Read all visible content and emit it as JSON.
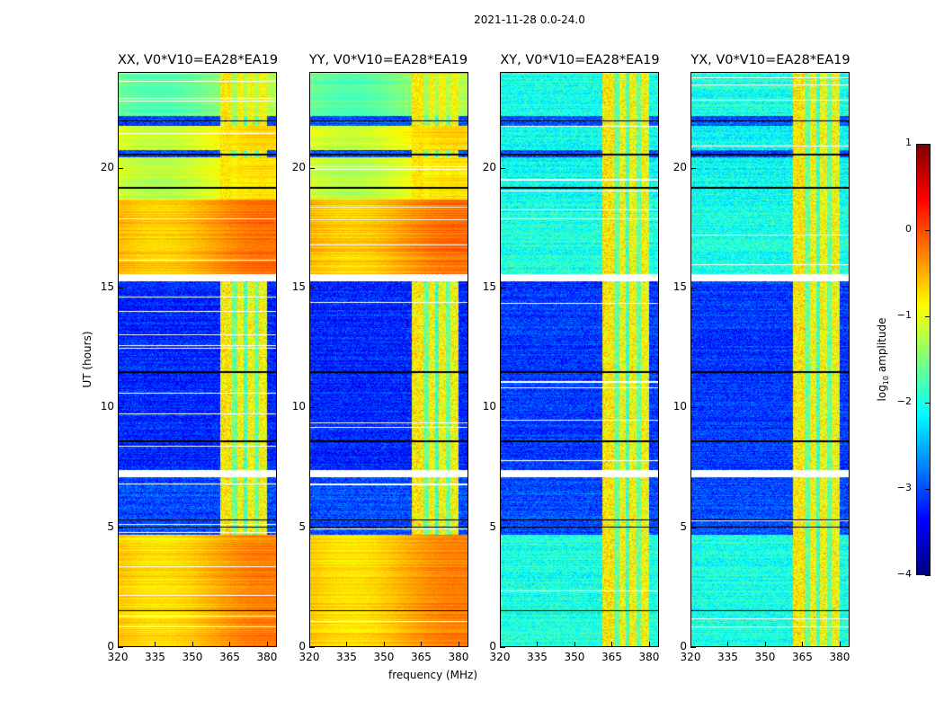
{
  "chart_data": {
    "type": "heatmap",
    "suptitle": "2021-11-28 0.0-24.0",
    "xlabel": "frequency (MHz)",
    "ylabel": "UT (hours)",
    "xlim": [
      320,
      384
    ],
    "ylim": [
      0,
      24
    ],
    "x_ticks": [
      "320",
      "335",
      "350",
      "365",
      "380"
    ],
    "x_tick_values": [
      320,
      335,
      350,
      365,
      380
    ],
    "y_ticks": [
      "0",
      "5",
      "10",
      "15",
      "20"
    ],
    "y_tick_values": [
      0,
      5,
      10,
      15,
      20
    ],
    "colormap": "jet",
    "colorbar": {
      "label_prefix": "log",
      "label_sub": "10",
      "label_suffix": " amplitude",
      "range": [
        -4,
        1
      ],
      "ticks": [
        "1",
        "0",
        "−1",
        "−2",
        "−3",
        "−4"
      ],
      "tick_values": [
        1,
        0,
        -1,
        -2,
        -3,
        -4
      ]
    },
    "panels": [
      {
        "title": "XX, V0*V10=EA28*EA19",
        "pol": "parallel"
      },
      {
        "title": "YY, V0*V10=EA28*EA19",
        "pol": "parallel"
      },
      {
        "title": "XY, V0*V10=EA28*EA19",
        "pol": "cross"
      },
      {
        "title": "YX, V0*V10=EA28*EA19",
        "pol": "cross"
      }
    ],
    "time_segments_log10_amp": [
      {
        "t0": 0.0,
        "t1": 4.7,
        "parallel": -0.5,
        "cross": -2.0
      },
      {
        "t0": 4.7,
        "t1": 7.1,
        "parallel": -3.0,
        "cross": -3.0
      },
      {
        "t0": 7.1,
        "t1": 7.4,
        "parallel": null,
        "cross": null
      },
      {
        "t0": 7.4,
        "t1": 15.3,
        "parallel": -3.2,
        "cross": -3.1
      },
      {
        "t0": 15.3,
        "t1": 15.6,
        "parallel": null,
        "cross": null
      },
      {
        "t0": 15.6,
        "t1": 18.7,
        "parallel": -0.4,
        "cross": -2.0
      },
      {
        "t0": 18.7,
        "t1": 20.5,
        "parallel": -1.0,
        "cross": -2.1
      },
      {
        "t0": 20.5,
        "t1": 20.8,
        "parallel": -3.0,
        "cross": -3.0
      },
      {
        "t0": 20.8,
        "t1": 21.8,
        "parallel": -0.9,
        "cross": -2.1
      },
      {
        "t0": 21.8,
        "t1": 22.2,
        "parallel": -3.0,
        "cross": -3.0
      },
      {
        "t0": 22.2,
        "t1": 24.0,
        "parallel": -1.5,
        "cross": -2.0
      }
    ],
    "rfi_bands_mhz": [
      {
        "f0": 361,
        "f1": 366,
        "level": -0.8
      },
      {
        "f0": 366,
        "f1": 368,
        "level": -1.6
      },
      {
        "f0": 368,
        "f1": 370.5,
        "level": -0.9
      },
      {
        "f0": 370.5,
        "f1": 372,
        "level": -1.8
      },
      {
        "f0": 372,
        "f1": 375,
        "level": -0.9
      },
      {
        "f0": 375,
        "f1": 377,
        "level": -1.6
      },
      {
        "f0": 377,
        "f1": 380,
        "level": -0.9
      }
    ],
    "flagged_hours": [
      1.5,
      5.0,
      5.3,
      7.2,
      8.6,
      11.5,
      15.4,
      19.2,
      20.6,
      22.0
    ]
  }
}
